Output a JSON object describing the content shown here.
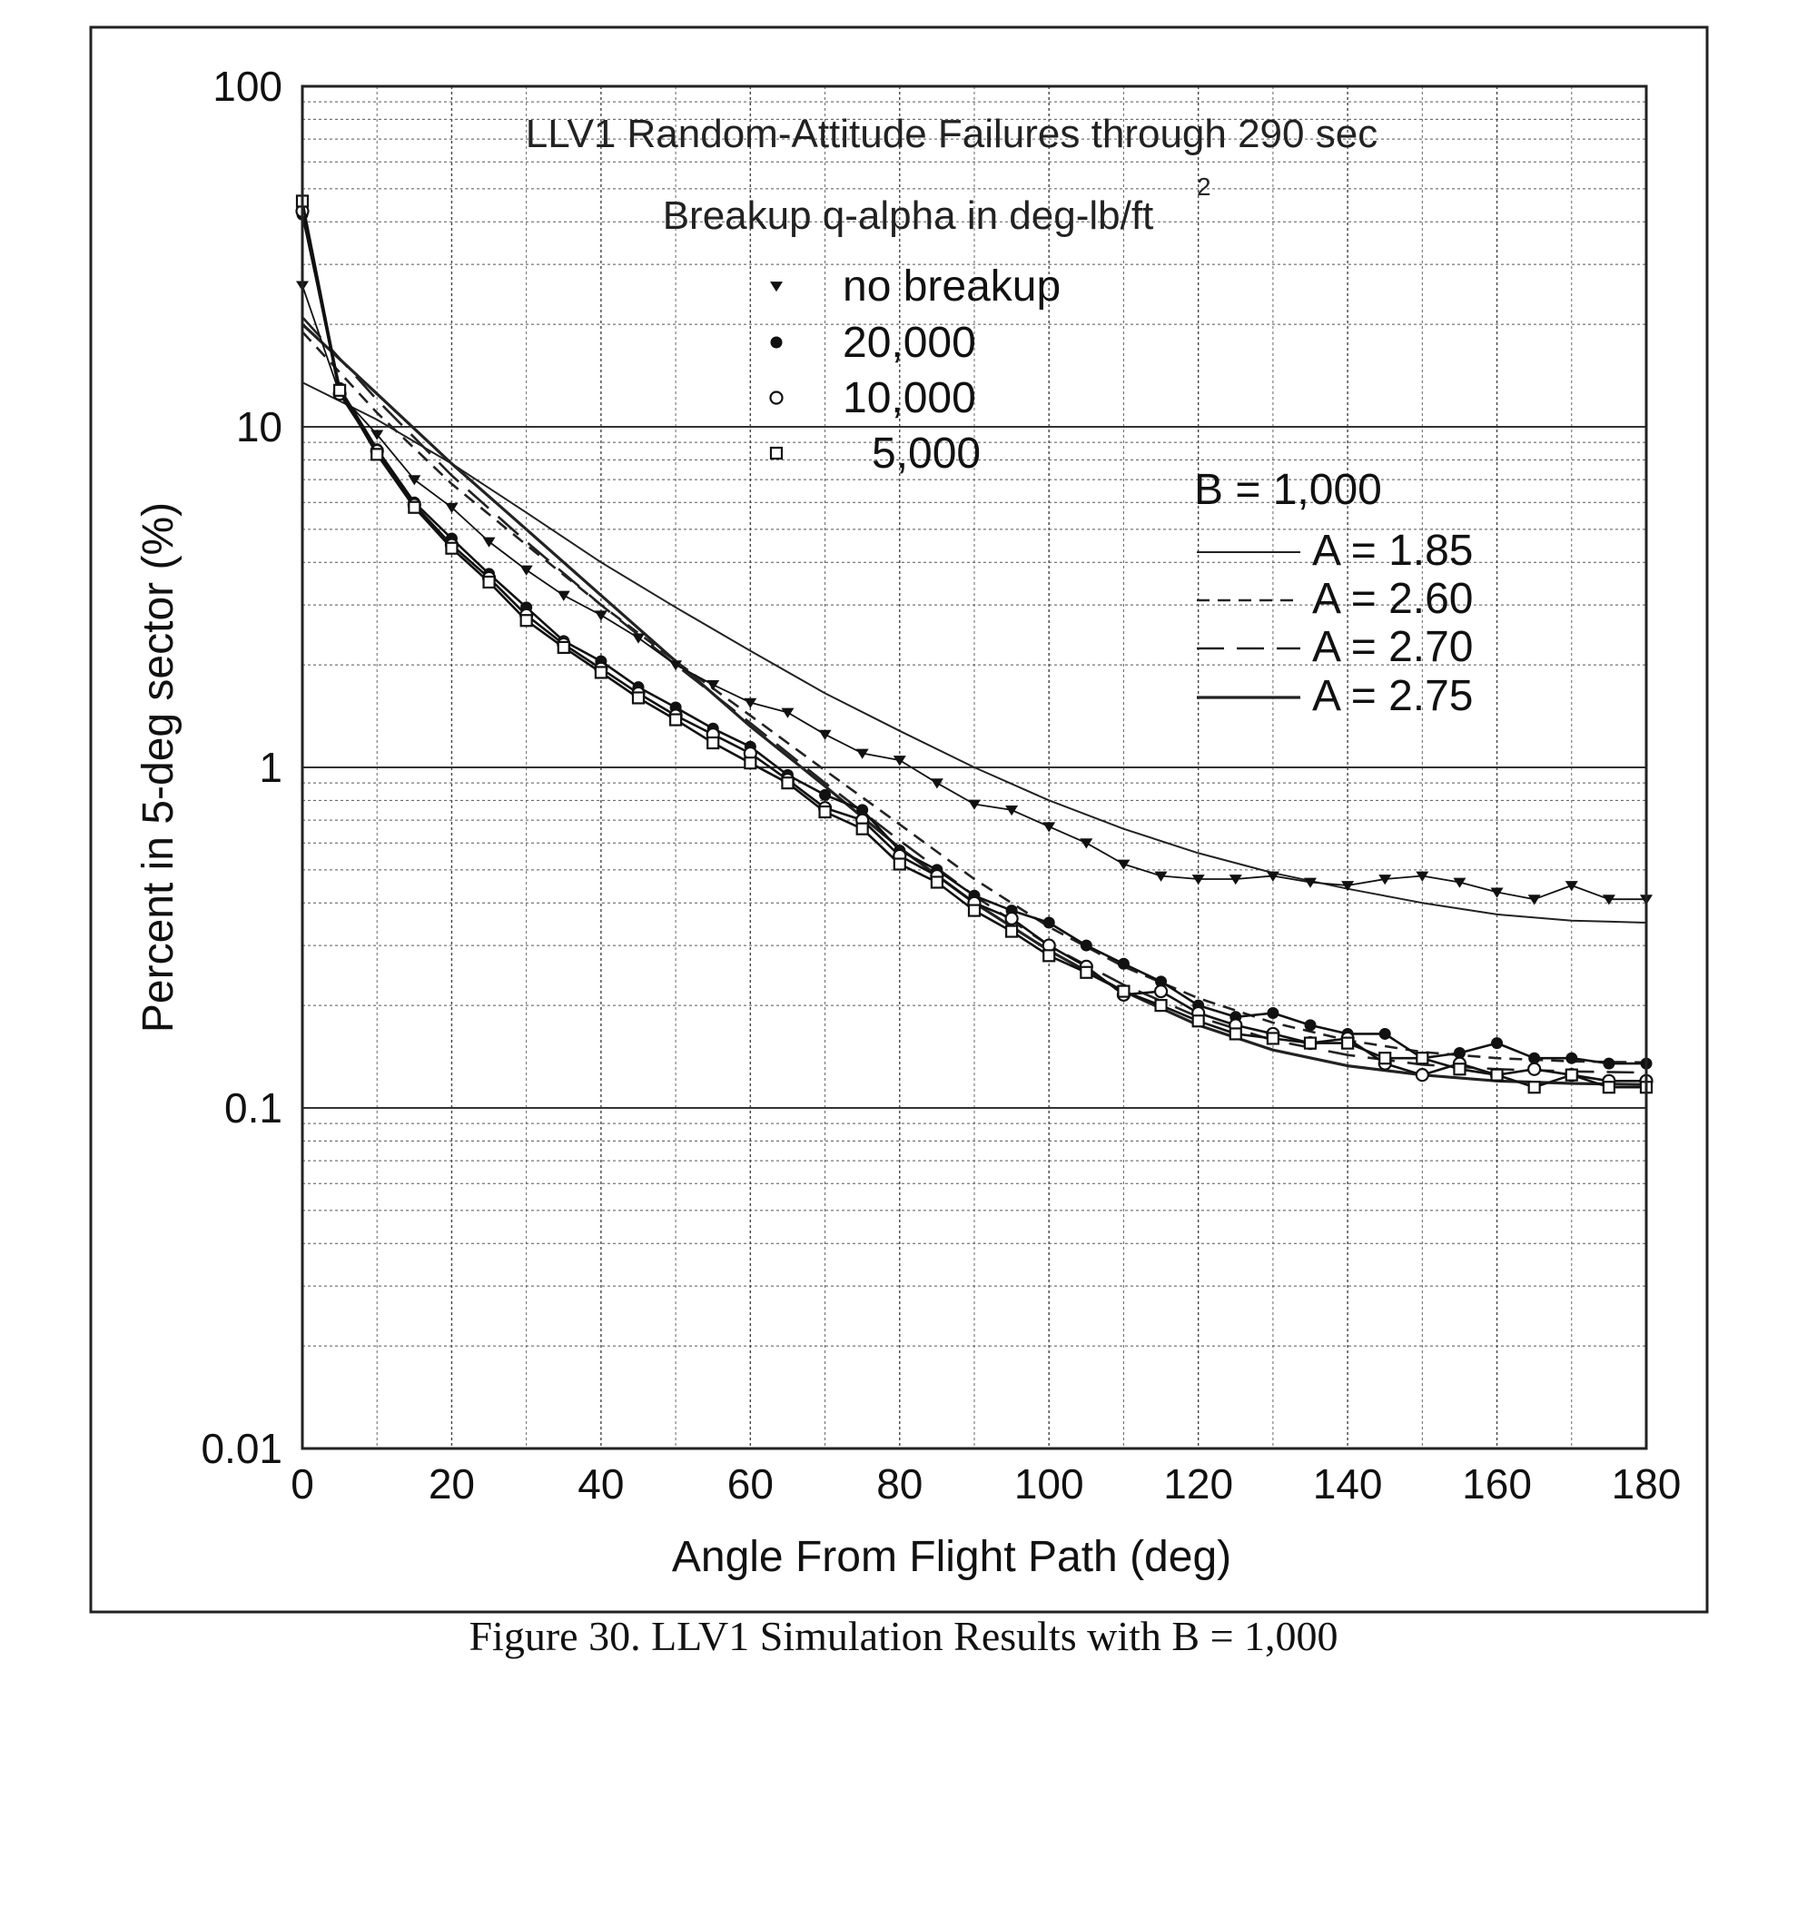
{
  "caption": "Figure 30. LLV1 Simulation Results with B = 1,000",
  "chart_data": {
    "type": "line",
    "title": "LLV1 Random-Attitude Failures through 290 sec",
    "subtitle": "Breakup q-alpha in deg-lb/ft",
    "subtitle_superscript": "2",
    "xlabel": "Angle From Flight Path (deg)",
    "ylabel": "Percent in 5-deg sector (%)",
    "xlim": [
      0,
      180
    ],
    "ylim": [
      0.01,
      100
    ],
    "yscale": "log",
    "x_ticks": [
      0,
      20,
      40,
      60,
      80,
      100,
      120,
      140,
      160,
      180
    ],
    "x_tick_labels": [
      "0",
      "20",
      "40",
      "60",
      "80",
      "100",
      "120",
      "140",
      "160",
      "180"
    ],
    "y_ticks": [
      0.01,
      0.1,
      1,
      10,
      100
    ],
    "y_tick_labels": [
      "0.01",
      "0.1",
      "1",
      "10",
      "100"
    ],
    "grid": true,
    "marker_legend": {
      "placement": "top-center",
      "entries": [
        {
          "marker": "triangle-down",
          "label": "no breakup"
        },
        {
          "marker": "filled-circle",
          "label": "20,000"
        },
        {
          "marker": "open-circle",
          "label": "10,000"
        },
        {
          "marker": "open-square",
          "label": "5,000"
        }
      ]
    },
    "fit_legend": {
      "placement": "right",
      "title": "B = 1,000",
      "entries": [
        {
          "style": "thin",
          "label": "A = 1.85"
        },
        {
          "style": "short-dash",
          "label": "A = 2.60"
        },
        {
          "style": "long-dash",
          "label": "A = 2.70"
        },
        {
          "style": "solid",
          "label": "A = 2.75"
        }
      ]
    },
    "series": [
      {
        "name": "no breakup",
        "marker": "triangle-down",
        "x": [
          0,
          5,
          10,
          15,
          20,
          25,
          30,
          35,
          40,
          45,
          50,
          55,
          60,
          65,
          70,
          75,
          80,
          85,
          90,
          95,
          100,
          105,
          110,
          115,
          120,
          125,
          130,
          135,
          140,
          145,
          150,
          155,
          160,
          165,
          170,
          175,
          180
        ],
        "y": [
          26,
          12.5,
          9.5,
          7.0,
          5.8,
          4.6,
          3.8,
          3.2,
          2.8,
          2.4,
          2.0,
          1.75,
          1.55,
          1.45,
          1.25,
          1.1,
          1.05,
          0.9,
          0.78,
          0.75,
          0.67,
          0.6,
          0.52,
          0.48,
          0.47,
          0.47,
          0.48,
          0.46,
          0.45,
          0.47,
          0.48,
          0.46,
          0.43,
          0.41,
          0.45,
          0.41,
          0.41
        ]
      },
      {
        "name": "20,000",
        "marker": "filled-circle",
        "x": [
          0,
          5,
          10,
          15,
          20,
          25,
          30,
          35,
          40,
          45,
          50,
          55,
          60,
          65,
          70,
          75,
          80,
          85,
          90,
          95,
          100,
          105,
          110,
          115,
          120,
          125,
          130,
          135,
          140,
          145,
          150,
          155,
          160,
          165,
          170,
          175,
          180
        ],
        "y": [
          42,
          13,
          8.6,
          6.0,
          4.7,
          3.7,
          2.95,
          2.35,
          2.05,
          1.72,
          1.5,
          1.3,
          1.15,
          0.95,
          0.83,
          0.75,
          0.57,
          0.5,
          0.42,
          0.38,
          0.35,
          0.3,
          0.265,
          0.235,
          0.2,
          0.185,
          0.19,
          0.175,
          0.165,
          0.165,
          0.14,
          0.145,
          0.155,
          0.14,
          0.14,
          0.135,
          0.135
        ]
      },
      {
        "name": "10,000",
        "marker": "open-circle",
        "x": [
          0,
          5,
          10,
          15,
          20,
          25,
          30,
          35,
          40,
          45,
          50,
          55,
          60,
          65,
          70,
          75,
          80,
          85,
          90,
          95,
          100,
          105,
          110,
          115,
          120,
          125,
          130,
          135,
          140,
          145,
          150,
          155,
          160,
          165,
          170,
          175,
          180
        ],
        "y": [
          43,
          12.5,
          8.5,
          5.9,
          4.5,
          3.6,
          2.8,
          2.3,
          1.95,
          1.65,
          1.42,
          1.25,
          1.1,
          0.92,
          0.76,
          0.7,
          0.55,
          0.48,
          0.4,
          0.36,
          0.3,
          0.26,
          0.215,
          0.22,
          0.19,
          0.175,
          0.165,
          0.155,
          0.16,
          0.135,
          0.125,
          0.135,
          0.125,
          0.13,
          0.125,
          0.12,
          0.12
        ]
      },
      {
        "name": "5,000",
        "marker": "open-square",
        "x": [
          0,
          5,
          10,
          15,
          20,
          25,
          30,
          35,
          40,
          45,
          50,
          55,
          60,
          65,
          70,
          75,
          80,
          85,
          90,
          95,
          100,
          105,
          110,
          115,
          120,
          125,
          130,
          135,
          140,
          145,
          150,
          155,
          160,
          165,
          170,
          175,
          180
        ],
        "y": [
          46,
          12.8,
          8.3,
          5.8,
          4.4,
          3.5,
          2.7,
          2.25,
          1.9,
          1.6,
          1.38,
          1.18,
          1.03,
          0.9,
          0.74,
          0.66,
          0.52,
          0.46,
          0.38,
          0.33,
          0.28,
          0.25,
          0.22,
          0.2,
          0.18,
          0.165,
          0.16,
          0.155,
          0.155,
          0.14,
          0.14,
          0.13,
          0.125,
          0.115,
          0.125,
          0.115,
          0.115
        ]
      },
      {
        "name": "A = 1.85",
        "style": "thin",
        "x": [
          0,
          10,
          20,
          30,
          40,
          50,
          60,
          70,
          80,
          90,
          100,
          110,
          120,
          130,
          140,
          150,
          160,
          170,
          180
        ],
        "y": [
          13.5,
          10.5,
          7.8,
          5.6,
          4.0,
          2.95,
          2.2,
          1.65,
          1.28,
          1.0,
          0.8,
          0.66,
          0.56,
          0.49,
          0.44,
          0.4,
          0.37,
          0.355,
          0.35
        ]
      },
      {
        "name": "A = 2.60",
        "style": "short-dash",
        "x": [
          0,
          10,
          20,
          30,
          40,
          50,
          60,
          70,
          80,
          90,
          100,
          110,
          120,
          130,
          140,
          150,
          160,
          170,
          180
        ],
        "y": [
          19,
          11,
          6.8,
          4.5,
          3.0,
          2.05,
          1.42,
          0.98,
          0.68,
          0.47,
          0.34,
          0.26,
          0.21,
          0.178,
          0.158,
          0.146,
          0.14,
          0.137,
          0.136
        ]
      },
      {
        "name": "A = 2.70",
        "style": "long-dash",
        "x": [
          0,
          10,
          20,
          30,
          40,
          50,
          60,
          70,
          80,
          90,
          100,
          110,
          120,
          130,
          140,
          150,
          160,
          170,
          180
        ],
        "y": [
          21,
          12,
          7.2,
          4.6,
          3.0,
          2.0,
          1.35,
          0.9,
          0.61,
          0.42,
          0.3,
          0.23,
          0.185,
          0.158,
          0.143,
          0.134,
          0.13,
          0.128,
          0.127
        ]
      },
      {
        "name": "A = 2.75",
        "style": "solid",
        "x": [
          0,
          10,
          20,
          30,
          40,
          50,
          60,
          70,
          80,
          90,
          100,
          110,
          120,
          130,
          140,
          150,
          160,
          170,
          180
        ],
        "y": [
          20,
          12.5,
          7.8,
          5.0,
          3.2,
          2.05,
          1.32,
          0.88,
          0.58,
          0.4,
          0.29,
          0.22,
          0.175,
          0.148,
          0.133,
          0.125,
          0.12,
          0.118,
          0.117
        ]
      }
    ]
  }
}
